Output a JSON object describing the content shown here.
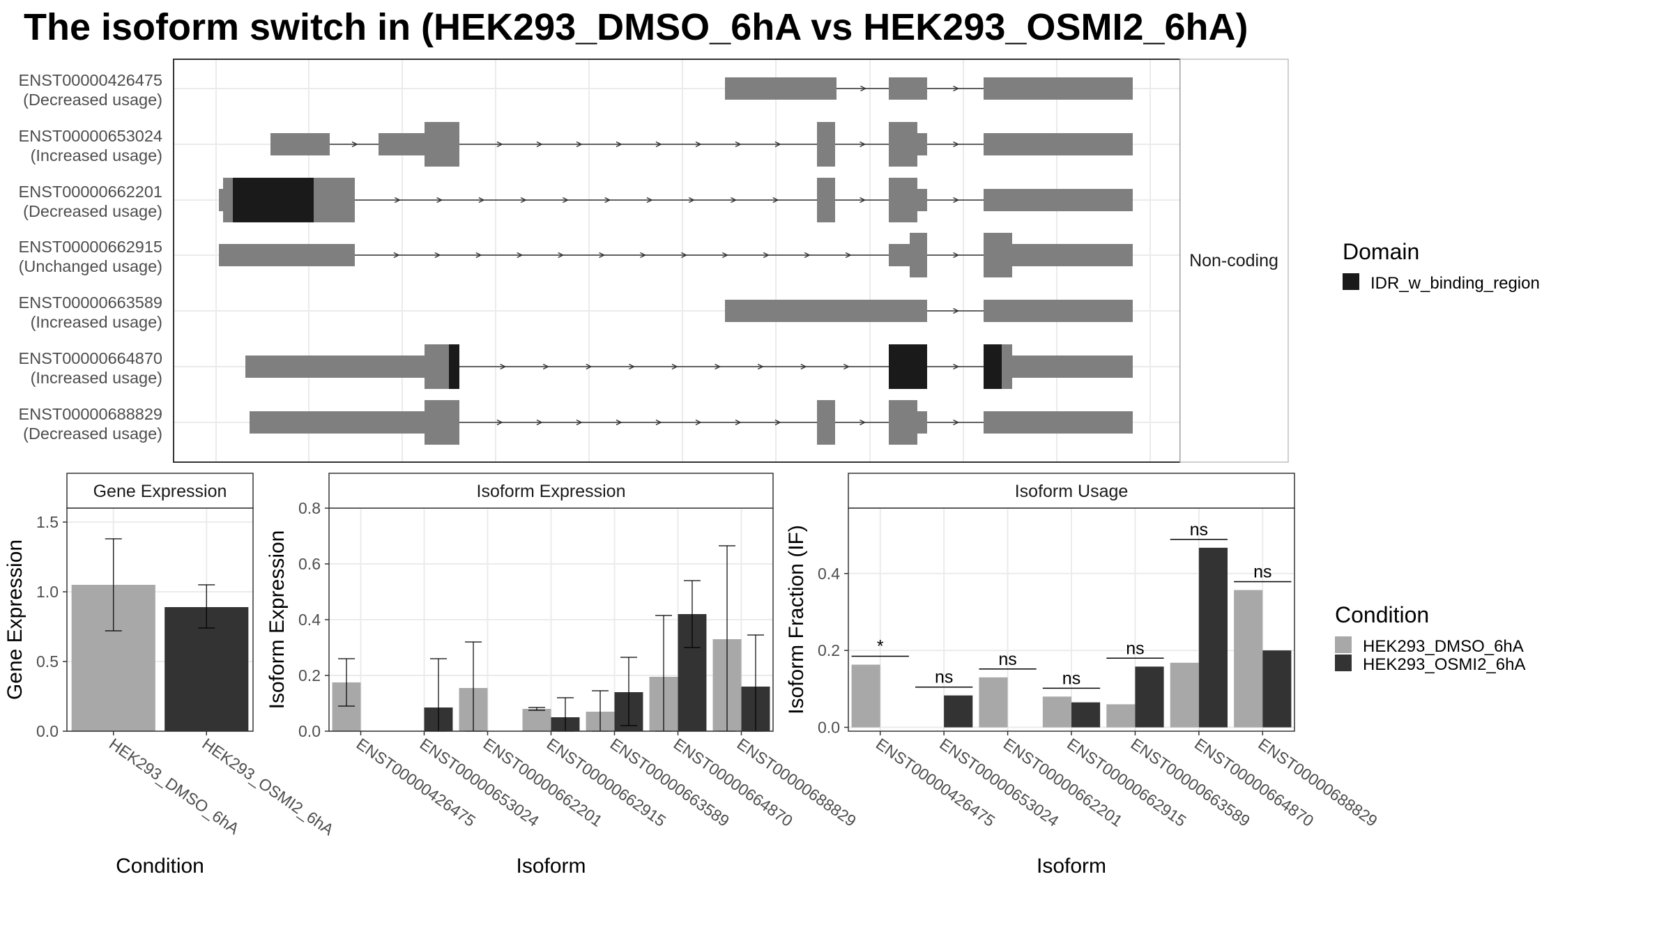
{
  "title": "The isoform switch in  (HEK293_DMSO_6hA vs HEK293_OSMI2_6hA)",
  "colors": {
    "exon": "#7f7f7f",
    "domain": "#1a1a1a",
    "dmso": "#a8a8a8",
    "osmi2": "#333333",
    "grid": "#ebebeb",
    "strip_bg": "#ffffff"
  },
  "chart_data": [
    {
      "type": "gene-structure",
      "facet_label": "Non-coding",
      "legend": {
        "title": "Domain",
        "entries": [
          {
            "label": "IDR_w_binding_region",
            "color": "#1a1a1a"
          }
        ]
      },
      "transcripts": [
        {
          "id": "ENST00000426475",
          "usage": "(Decreased usage)"
        },
        {
          "id": "ENST00000653024",
          "usage": "(Increased usage)"
        },
        {
          "id": "ENST00000662201",
          "usage": "(Decreased usage)"
        },
        {
          "id": "ENST00000662915",
          "usage": "(Unchanged usage)"
        },
        {
          "id": "ENST00000663589",
          "usage": "(Increased usage)"
        },
        {
          "id": "ENST00000664870",
          "usage": "(Increased usage)"
        },
        {
          "id": "ENST00000688829",
          "usage": "(Decreased usage)"
        }
      ]
    },
    {
      "type": "bar",
      "strip_title": "Gene Expression",
      "xlabel": "Condition",
      "ylabel": "Gene Expression",
      "ylim": [
        0,
        1.6
      ],
      "yticks": [
        "0.0",
        "0.5",
        "1.0",
        "1.5"
      ],
      "categories": [
        "HEK293_DMSO_6hA",
        "HEK293_OSMI2_6hA"
      ],
      "values": [
        1.05,
        0.89
      ],
      "error_low": [
        0.72,
        0.74
      ],
      "error_high": [
        1.38,
        1.05
      ]
    },
    {
      "type": "bar",
      "strip_title": "Isoform Expression",
      "xlabel": "Isoform",
      "ylabel": "Isoform Expression",
      "ylim": [
        0,
        0.8
      ],
      "yticks": [
        "0.0",
        "0.2",
        "0.4",
        "0.6",
        "0.8"
      ],
      "categories": [
        "ENST00000426475",
        "ENST00000653024",
        "ENST00000662201",
        "ENST00000662915",
        "ENST00000663589",
        "ENST00000664870",
        "ENST00000688829"
      ],
      "series": [
        {
          "name": "HEK293_DMSO_6hA",
          "values": [
            0.175,
            0.0,
            0.155,
            0.08,
            0.07,
            0.195,
            0.33
          ],
          "error_low": [
            0.09,
            0.0,
            0.0,
            0.075,
            0.0,
            0.0,
            0.0
          ],
          "error_high": [
            0.26,
            0.0,
            0.32,
            0.085,
            0.145,
            0.415,
            0.665
          ]
        },
        {
          "name": "HEK293_OSMI2_6hA",
          "values": [
            0.0,
            0.085,
            0.0,
            0.05,
            0.14,
            0.42,
            0.16
          ],
          "error_low": [
            0.0,
            0.0,
            0.0,
            0.0,
            0.02,
            0.3,
            0.0
          ],
          "error_high": [
            0.0,
            0.26,
            0.0,
            0.12,
            0.265,
            0.54,
            0.345
          ]
        }
      ]
    },
    {
      "type": "bar",
      "strip_title": "Isoform Usage",
      "xlabel": "Isoform",
      "ylabel": "Isoform Fraction (IF)",
      "ylim": [
        -0.01,
        0.57
      ],
      "yticks": [
        "0.0",
        "0.2",
        "0.4"
      ],
      "categories": [
        "ENST00000426475",
        "ENST00000653024",
        "ENST00000662201",
        "ENST00000662915",
        "ENST00000663589",
        "ENST00000664870",
        "ENST00000688829"
      ],
      "series": [
        {
          "name": "HEK293_DMSO_6hA",
          "values": [
            0.163,
            0.0,
            0.13,
            0.08,
            0.06,
            0.168,
            0.357
          ]
        },
        {
          "name": "HEK293_OSMI2_6hA",
          "values": [
            0.0,
            0.083,
            0.0,
            0.065,
            0.158,
            0.467,
            0.2
          ]
        }
      ],
      "significance": [
        "*",
        "ns",
        "ns",
        "ns",
        "ns",
        "ns",
        "ns"
      ]
    }
  ],
  "condition_legend": {
    "title": "Condition",
    "entries": [
      {
        "label": "HEK293_DMSO_6hA",
        "color": "#a8a8a8"
      },
      {
        "label": "HEK293_OSMI2_6hA",
        "color": "#333333"
      }
    ]
  }
}
